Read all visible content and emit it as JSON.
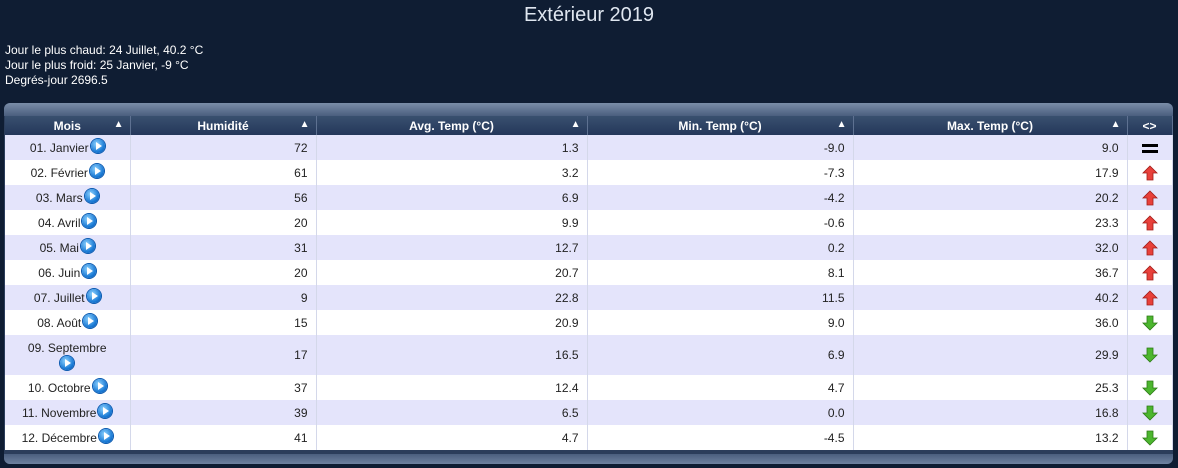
{
  "page_title": "Extérieur 2019",
  "stats": {
    "hottest": "Jour le plus chaud: 24 Juillet, 40.2 °C",
    "coldest": "Jour le plus froid: 25 Janvier, -9 °C",
    "degree_days": "Degrés-jour 2696.5"
  },
  "table": {
    "headers": {
      "month": "Mois",
      "humidity": "Humidité",
      "avg": "Avg. Temp (°C)",
      "min": "Min. Temp (°C)",
      "max": "Max. Temp (°C)",
      "trend": "<>"
    },
    "sort_glyph": "▲",
    "rows": [
      {
        "month": "01. Janvier",
        "humidity": "72",
        "avg": "1.3",
        "min": "-9.0",
        "max": "9.0",
        "trend": "equal"
      },
      {
        "month": "02. Février",
        "humidity": "61",
        "avg": "3.2",
        "min": "-7.3",
        "max": "17.9",
        "trend": "up"
      },
      {
        "month": "03. Mars",
        "humidity": "56",
        "avg": "6.9",
        "min": "-4.2",
        "max": "20.2",
        "trend": "up"
      },
      {
        "month": "04. Avril",
        "humidity": "20",
        "avg": "9.9",
        "min": "-0.6",
        "max": "23.3",
        "trend": "up"
      },
      {
        "month": "05. Mai",
        "humidity": "31",
        "avg": "12.7",
        "min": "0.2",
        "max": "32.0",
        "trend": "up"
      },
      {
        "month": "06. Juin",
        "humidity": "20",
        "avg": "20.7",
        "min": "8.1",
        "max": "36.7",
        "trend": "up"
      },
      {
        "month": "07. Juillet",
        "humidity": "9",
        "avg": "22.8",
        "min": "11.5",
        "max": "40.2",
        "trend": "up"
      },
      {
        "month": "08. Août",
        "humidity": "15",
        "avg": "20.9",
        "min": "9.0",
        "max": "36.0",
        "trend": "down"
      },
      {
        "month": "09. Septembre",
        "humidity": "17",
        "avg": "16.5",
        "min": "6.9",
        "max": "29.9",
        "trend": "down"
      },
      {
        "month": "10. Octobre",
        "humidity": "37",
        "avg": "12.4",
        "min": "4.7",
        "max": "25.3",
        "trend": "down"
      },
      {
        "month": "11. Novembre",
        "humidity": "39",
        "avg": "6.5",
        "min": "0.0",
        "max": "16.8",
        "trend": "down"
      },
      {
        "month": "12. Décembre",
        "humidity": "41",
        "avg": "4.7",
        "min": "-4.5",
        "max": "13.2",
        "trend": "down"
      }
    ]
  },
  "colors": {
    "background": "#0f1d33",
    "row_odd": "#e4e4fb",
    "row_even": "#ffffff",
    "arrow_up": "#e8403a",
    "arrow_down": "#4cb62e",
    "play_icon": "#1778d4"
  },
  "icons": {
    "play": "play-circle-icon",
    "up": "arrow-up-icon",
    "down": "arrow-down-icon",
    "equal": "equal-icon"
  }
}
